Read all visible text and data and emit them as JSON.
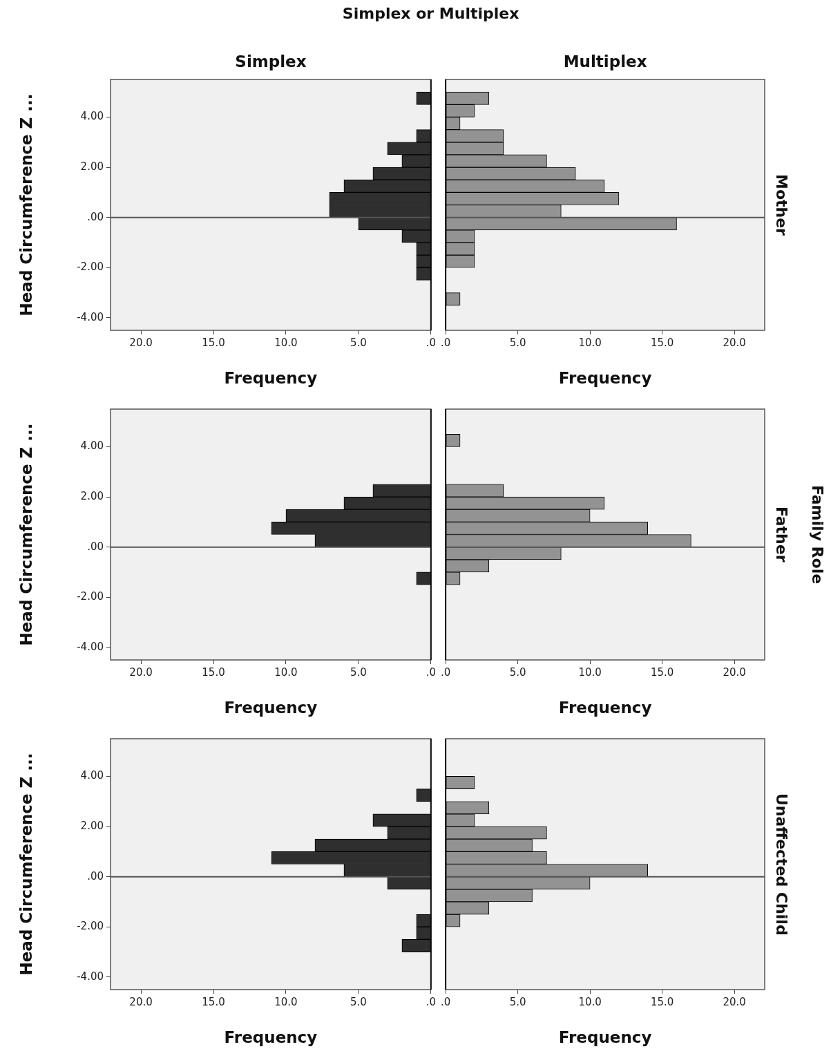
{
  "chart_data": [
    {
      "type": "histogram",
      "orientation": "horizontal",
      "title": "Simplex",
      "xlabel": "Frequency",
      "ylabel": "Head Circumference Z ...",
      "annotations": [
        "Simplex or Multiplex"
      ],
      "bins": [
        -3.5,
        -3,
        -2.5,
        -2,
        -1.5,
        -1,
        -0.5,
        0,
        0.5,
        1,
        1.5,
        2,
        2.5,
        3,
        3.5,
        4,
        4.5,
        5
      ],
      "values": [
        0,
        0,
        1,
        1,
        1,
        2,
        5,
        7,
        7,
        6,
        4,
        2,
        3,
        1,
        0,
        0,
        1
      ],
      "color": "#2f2f2f",
      "xlim": [
        22.1,
        0
      ],
      "xticks": [
        {
          "value": 20,
          "label": "20.0"
        },
        {
          "value": 15,
          "label": "15.0"
        },
        {
          "value": 10,
          "label": "10.0"
        },
        {
          "value": 5,
          "label": "5.0"
        },
        {
          "value": 0,
          "label": ".0"
        }
      ],
      "ylim": [
        -4.5,
        5.5
      ],
      "yticks": [
        {
          "value": -4,
          "label": "-4.00"
        },
        {
          "value": -2,
          "label": "-2.00"
        },
        {
          "value": 0,
          "label": ".00"
        },
        {
          "value": 2,
          "label": "2.00"
        },
        {
          "value": 4,
          "label": "4.00"
        }
      ],
      "ref_lines": [
        {
          "axis": "y",
          "value": 0
        }
      ]
    },
    {
      "type": "histogram",
      "orientation": "horizontal",
      "title": "Multiplex",
      "xlabel": "Frequency",
      "annotations": [
        "Mother"
      ],
      "bins": [
        -3.5,
        -3,
        -2.5,
        -2,
        -1.5,
        -1,
        -0.5,
        0,
        0.5,
        1,
        1.5,
        2,
        2.5,
        3,
        3.5,
        4,
        4.5,
        5
      ],
      "values": [
        1,
        0,
        0,
        2,
        2,
        2,
        16,
        8,
        12,
        11,
        9,
        7,
        4,
        4,
        1,
        2,
        3
      ],
      "color": "#939393",
      "xlim": [
        0,
        22.1
      ],
      "xticks": [
        {
          "value": 0,
          "label": ".0"
        },
        {
          "value": 5,
          "label": "5.0"
        },
        {
          "value": 10,
          "label": "10.0"
        },
        {
          "value": 15,
          "label": "15.0"
        },
        {
          "value": 20,
          "label": "20.0"
        }
      ],
      "ylim": [
        -4.5,
        5.5
      ],
      "tick_labels": "x",
      "ref_lines": [
        {
          "axis": "y",
          "value": 0
        }
      ]
    },
    {
      "type": "histogram",
      "orientation": "horizontal",
      "xlabel": "Frequency",
      "ylabel": "Head Circumference Z ...",
      "bins": [
        -3.5,
        -3,
        -2.5,
        -2,
        -1.5,
        -1,
        -0.5,
        0,
        0.5,
        1,
        1.5,
        2,
        2.5,
        3,
        3.5,
        4,
        4.5,
        5
      ],
      "values": [
        0,
        0,
        0,
        0,
        1,
        0,
        0,
        8,
        11,
        10,
        6,
        4,
        0,
        0,
        0,
        0,
        0
      ],
      "color": "#2f2f2f",
      "xlim": [
        22.1,
        0
      ],
      "xticks": [
        {
          "value": 20,
          "label": "20.0"
        },
        {
          "value": 15,
          "label": "15.0"
        },
        {
          "value": 10,
          "label": "10.0"
        },
        {
          "value": 5,
          "label": "5.0"
        },
        {
          "value": 0,
          "label": ".0"
        }
      ],
      "ylim": [
        -4.5,
        5.5
      ],
      "yticks": [
        {
          "value": -4,
          "label": "-4.00"
        },
        {
          "value": -2,
          "label": "-2.00"
        },
        {
          "value": 0,
          "label": ".00"
        },
        {
          "value": 2,
          "label": "2.00"
        },
        {
          "value": 4,
          "label": "4.00"
        }
      ],
      "ref_lines": [
        {
          "axis": "y",
          "value": 0
        }
      ]
    },
    {
      "type": "histogram",
      "orientation": "horizontal",
      "xlabel": "Frequency",
      "annotations": [
        "Father",
        "Family Role"
      ],
      "bins": [
        -3.5,
        -3,
        -2.5,
        -2,
        -1.5,
        -1,
        -0.5,
        0,
        0.5,
        1,
        1.5,
        2,
        2.5,
        3,
        3.5,
        4,
        4.5,
        5
      ],
      "values": [
        0,
        0,
        0,
        0,
        1,
        3,
        8,
        17,
        14,
        10,
        11,
        4,
        0,
        0,
        0,
        1,
        0
      ],
      "color": "#939393",
      "xlim": [
        0,
        22.1
      ],
      "xticks": [
        {
          "value": 0,
          "label": ".0"
        },
        {
          "value": 5,
          "label": "5.0"
        },
        {
          "value": 10,
          "label": "10.0"
        },
        {
          "value": 15,
          "label": "15.0"
        },
        {
          "value": 20,
          "label": "20.0"
        }
      ],
      "ylim": [
        -4.5,
        5.5
      ],
      "tick_labels": "x",
      "ref_lines": [
        {
          "axis": "y",
          "value": 0
        }
      ]
    },
    {
      "type": "histogram",
      "orientation": "horizontal",
      "xlabel": "Frequency",
      "ylabel": "Head Circumference Z ...",
      "bins": [
        -3.5,
        -3,
        -2.5,
        -2,
        -1.5,
        -1,
        -0.5,
        0,
        0.5,
        1,
        1.5,
        2,
        2.5,
        3,
        3.5,
        4,
        4.5,
        5
      ],
      "values": [
        0,
        2,
        1,
        1,
        0,
        0,
        3,
        6,
        11,
        8,
        3,
        4,
        0,
        1,
        0,
        0,
        0
      ],
      "color": "#2f2f2f",
      "xlim": [
        22.1,
        0
      ],
      "xticks": [
        {
          "value": 20,
          "label": "20.0"
        },
        {
          "value": 15,
          "label": "15.0"
        },
        {
          "value": 10,
          "label": "10.0"
        },
        {
          "value": 5,
          "label": "5.0"
        },
        {
          "value": 0,
          "label": ".0"
        }
      ],
      "ylim": [
        -4.5,
        5.5
      ],
      "yticks": [
        {
          "value": -4,
          "label": "-4.00"
        },
        {
          "value": -2,
          "label": "-2.00"
        },
        {
          "value": 0,
          "label": ".00"
        },
        {
          "value": 2,
          "label": "2.00"
        },
        {
          "value": 4,
          "label": "4.00"
        }
      ],
      "ref_lines": [
        {
          "axis": "y",
          "value": 0
        }
      ]
    },
    {
      "type": "histogram",
      "orientation": "horizontal",
      "xlabel": "Frequency",
      "annotations": [
        "Unaffected Child"
      ],
      "bins": [
        -3.5,
        -3,
        -2.5,
        -2,
        -1.5,
        -1,
        -0.5,
        0,
        0.5,
        1,
        1.5,
        2,
        2.5,
        3,
        3.5,
        4,
        4.5,
        5
      ],
      "values": [
        0,
        0,
        0,
        1,
        3,
        6,
        10,
        14,
        7,
        6,
        7,
        2,
        3,
        0,
        2,
        0,
        0
      ],
      "color": "#939393",
      "xlim": [
        0,
        22.1
      ],
      "xticks": [
        {
          "value": 0,
          "label": ".0"
        },
        {
          "value": 5,
          "label": "5.0"
        },
        {
          "value": 10,
          "label": "10.0"
        },
        {
          "value": 15,
          "label": "15.0"
        },
        {
          "value": 20,
          "label": "20.0"
        }
      ],
      "ylim": [
        -4.5,
        5.5
      ],
      "tick_labels": "x",
      "ref_lines": [
        {
          "axis": "y",
          "value": 0
        }
      ]
    }
  ]
}
